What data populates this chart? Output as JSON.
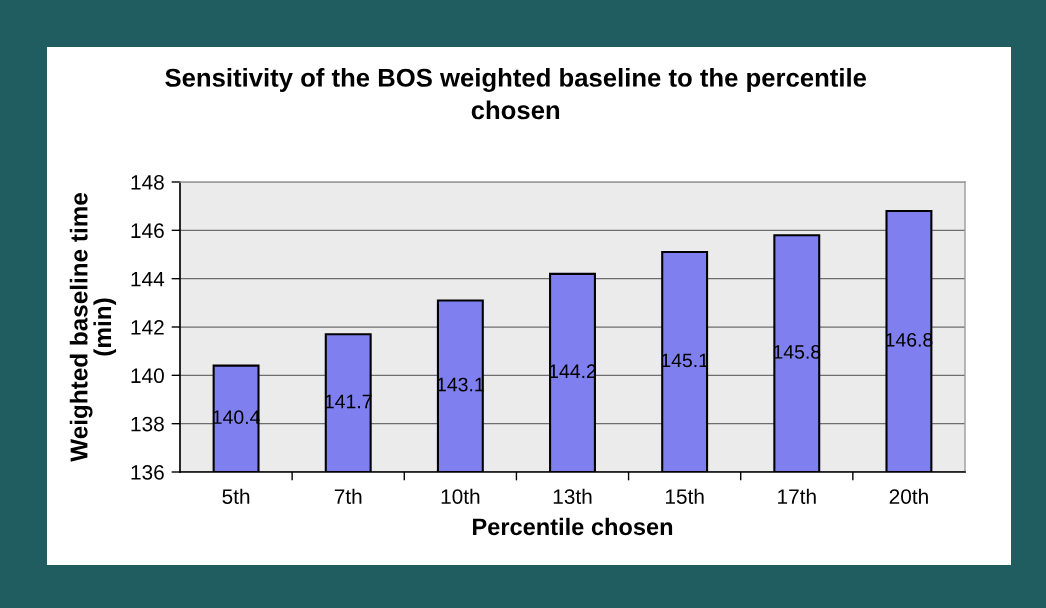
{
  "chart_data": {
    "type": "bar",
    "title": "Sensitivity of the BOS weighted baseline to the percentile chosen",
    "xlabel": "Percentile chosen",
    "ylabel": "Weighted baseline time (min)",
    "categories": [
      "5th",
      "7th",
      "10th",
      "13th",
      "15th",
      "17th",
      "20th"
    ],
    "values": [
      140.4,
      141.7,
      143.1,
      144.2,
      145.1,
      145.8,
      146.8
    ],
    "color": "#7f7fef",
    "ylim": [
      136,
      148
    ],
    "yticks": [
      136,
      138,
      140,
      142,
      144,
      146,
      148
    ],
    "grid": "y",
    "data_labels": true
  }
}
